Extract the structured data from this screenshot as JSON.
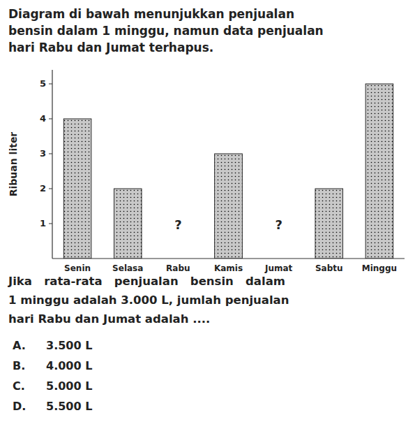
{
  "chart_data": {
    "type": "bar",
    "title": [
      "Diagram di bawah menunjukkan penjualan",
      "bensin dalam 1 minggu, namun data penjualan",
      "hari Rabu dan Jumat terhapus."
    ],
    "categories": [
      "Senin",
      "Selasa",
      "Rabu",
      "Kamis",
      "Jumat",
      "Sabtu",
      "Minggu"
    ],
    "values": [
      4,
      2,
      null,
      3,
      null,
      2,
      5
    ],
    "ylabel": "Ribuan liter",
    "ylim": [
      0,
      5.4
    ],
    "yticks": [
      1,
      2,
      3,
      4,
      5
    ],
    "grid": false,
    "color": "#c8c8c8",
    "annotations": [
      {
        "text": "?",
        "category": "Rabu"
      },
      {
        "text": "?",
        "category": "Jumat"
      },
      {
        "text": "Jika   rata-rata   penjualan   bensin   dalam"
      },
      {
        "text": "1 minggu adalah 3.000 L, jumlah penjualan"
      },
      {
        "text": "hari Rabu dan Jumat adalah ...."
      },
      {
        "text": [
          "A.",
          "3.500 L"
        ]
      },
      {
        "text": [
          "B.",
          "4.000 L"
        ]
      },
      {
        "text": [
          "C.",
          "5.000 L"
        ]
      },
      {
        "text": [
          "D.",
          "5.500 L"
        ]
      }
    ]
  }
}
